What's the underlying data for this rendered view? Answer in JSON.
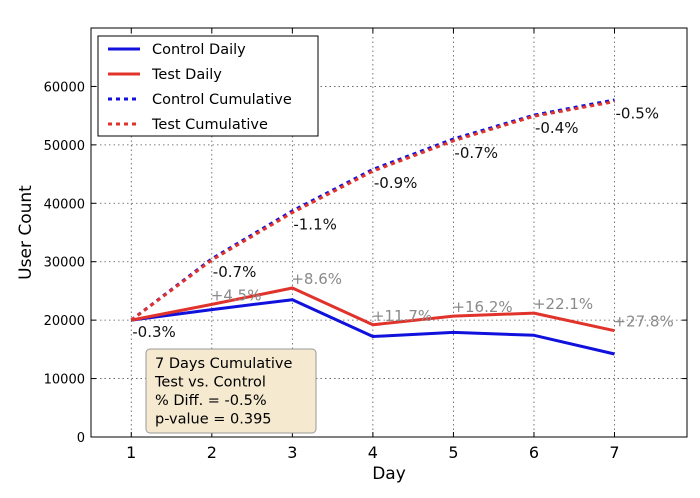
{
  "chart_data": {
    "type": "line",
    "xlabel": "Day",
    "ylabel": "User Count",
    "x": [
      1,
      2,
      3,
      4,
      5,
      6,
      7
    ],
    "xlim": [
      0.5,
      7.9
    ],
    "ylim": [
      0,
      70000
    ],
    "y_ticks": [
      0,
      10000,
      20000,
      30000,
      40000,
      50000,
      60000
    ],
    "grid": true,
    "legend_position": "top-left",
    "series": [
      {
        "name": "Control Daily",
        "color": "#1111dd",
        "style": "solid",
        "values": [
          20000,
          21800,
          23500,
          17200,
          17900,
          17400,
          14200
        ]
      },
      {
        "name": "Test Daily",
        "color": "#e0332b",
        "style": "solid",
        "values": [
          20000,
          22700,
          25500,
          19200,
          20700,
          21200,
          18200
        ]
      },
      {
        "name": "Control Cumulative",
        "color": "#1111dd",
        "style": "dashed",
        "values": [
          20000,
          30500,
          38700,
          45800,
          51000,
          55100,
          57700
        ]
      },
      {
        "name": "Test Cumulative",
        "color": "#e0332b",
        "style": "dashed",
        "values": [
          20000,
          30300,
          38400,
          45500,
          50700,
          54900,
          57400
        ]
      }
    ],
    "daily_labels": {
      "color": "#8a8a8a",
      "labels": [
        {
          "x": 2,
          "text": "+4.5%",
          "anchor_y": 22700
        },
        {
          "x": 3,
          "text": "+8.6%",
          "anchor_y": 25500
        },
        {
          "x": 4,
          "text": "+11.7%",
          "anchor_y": 19200
        },
        {
          "x": 5,
          "text": "+16.2%",
          "anchor_y": 20700
        },
        {
          "x": 6,
          "text": "+22.1%",
          "anchor_y": 21200
        },
        {
          "x": 7,
          "text": "+27.8%",
          "anchor_y": 18200
        }
      ]
    },
    "cumulative_labels": {
      "color": "#111111",
      "labels": [
        {
          "x": 1,
          "text": "-0.3%",
          "anchor_y": 20000
        },
        {
          "x": 2,
          "text": "-0.7%",
          "anchor_y": 30300
        },
        {
          "x": 3,
          "text": "-1.1%",
          "anchor_y": 38400
        },
        {
          "x": 4,
          "text": "-0.9%",
          "anchor_y": 45500
        },
        {
          "x": 5,
          "text": "-0.7%",
          "anchor_y": 50700
        },
        {
          "x": 6,
          "text": "-0.4%",
          "anchor_y": 54900
        },
        {
          "x": 7,
          "text": "-0.5%",
          "anchor_y": 57400
        }
      ]
    },
    "summary_box": {
      "lines": [
        "7 Days Cumulative",
        "Test vs. Control",
        "% Diff. = -0.5%",
        "p-value = 0.395"
      ],
      "background": "#f5e9cf",
      "border": "#999999"
    }
  }
}
